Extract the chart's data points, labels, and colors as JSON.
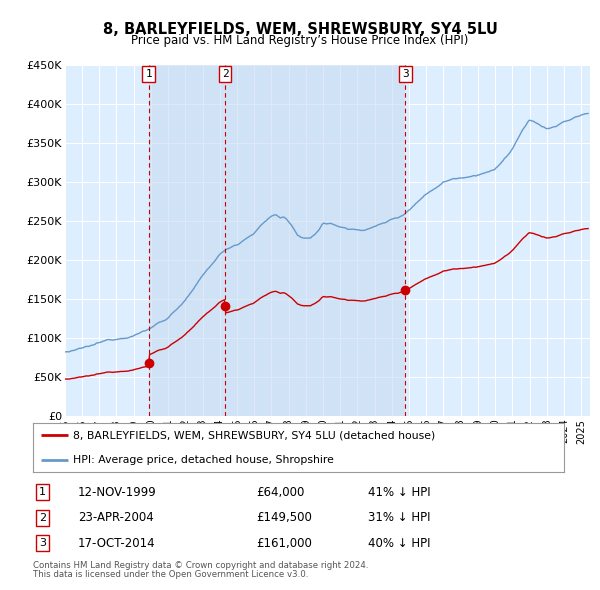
{
  "title": "8, BARLEYFIELDS, WEM, SHREWSBURY, SY4 5LU",
  "subtitle": "Price paid vs. HM Land Registry’s House Price Index (HPI)",
  "ylabel_ticks": [
    "£0",
    "£50K",
    "£100K",
    "£150K",
    "£200K",
    "£250K",
    "£300K",
    "£350K",
    "£400K",
    "£450K"
  ],
  "ylim": [
    0,
    450000
  ],
  "xlim_start": 1995.0,
  "xlim_end": 2025.5,
  "sales": [
    {
      "label": "1",
      "date": "12-NOV-1999",
      "price": 64000,
      "year": 1999.87,
      "hpi_pct": "41% ↓ HPI"
    },
    {
      "label": "2",
      "date": "23-APR-2004",
      "price": 149500,
      "year": 2004.31,
      "hpi_pct": "31% ↓ HPI"
    },
    {
      "label": "3",
      "date": "17-OCT-2014",
      "price": 161000,
      "year": 2014.79,
      "hpi_pct": "40% ↓ HPI"
    }
  ],
  "legend_line1": "8, BARLEYFIELDS, WEM, SHREWSBURY, SY4 5LU (detached house)",
  "legend_line2": "HPI: Average price, detached house, Shropshire",
  "footnote1": "Contains HM Land Registry data © Crown copyright and database right 2024.",
  "footnote2": "This data is licensed under the Open Government Licence v3.0.",
  "red_color": "#cc0000",
  "blue_color": "#6699cc",
  "background_color": "#ddeeff",
  "background_shaded": "#c8daf0",
  "grid_color": "#ffffff",
  "vline_color": "#cc0000",
  "box_color": "#cc0000",
  "hpi_base_1995": 82000,
  "hpi_base_2004": 220000,
  "hpi_base_2014": 257000
}
